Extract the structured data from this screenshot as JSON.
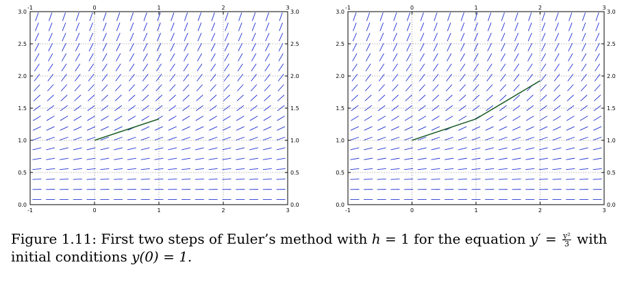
{
  "chart_data": [
    {
      "type": "line",
      "panel": "left",
      "xlim": [
        -1,
        3
      ],
      "ylim": [
        0.0,
        3.0
      ],
      "x_ticks": [
        "-1",
        "0",
        "1",
        "2",
        "3"
      ],
      "y_ticks": [
        "0.0",
        "0.5",
        "1.0",
        "1.5",
        "2.0",
        "2.5",
        "3.0"
      ],
      "grid": true,
      "slope_field": "y^2/3",
      "series": [
        {
          "x": [
            0,
            1
          ],
          "y": [
            1.0,
            1.333
          ]
        }
      ]
    },
    {
      "type": "line",
      "panel": "right",
      "xlim": [
        -1,
        3
      ],
      "ylim": [
        0.0,
        3.0
      ],
      "x_ticks": [
        "-1",
        "0",
        "1",
        "2",
        "3"
      ],
      "y_ticks": [
        "0.0",
        "0.5",
        "1.0",
        "1.5",
        "2.0",
        "2.5",
        "3.0"
      ],
      "grid": true,
      "slope_field": "y^2/3",
      "series": [
        {
          "x": [
            0,
            1,
            2
          ],
          "y": [
            1.0,
            1.333,
            1.926
          ]
        }
      ]
    }
  ],
  "colors": {
    "field": "#1f2fd0",
    "solution": "#1e5e28",
    "grid": "#9a9a9a"
  },
  "caption": {
    "figure": "Figure 1.11:",
    "part1": "First two steps of Euler’s method with",
    "h_var": "h",
    "h_eq": "= 1",
    "part2": "for the equation",
    "y_prime": "y′",
    "eq": "=",
    "numerator": "y²",
    "denominator": "3",
    "part3": "with initial conditions",
    "init": "y(0) = 1."
  }
}
